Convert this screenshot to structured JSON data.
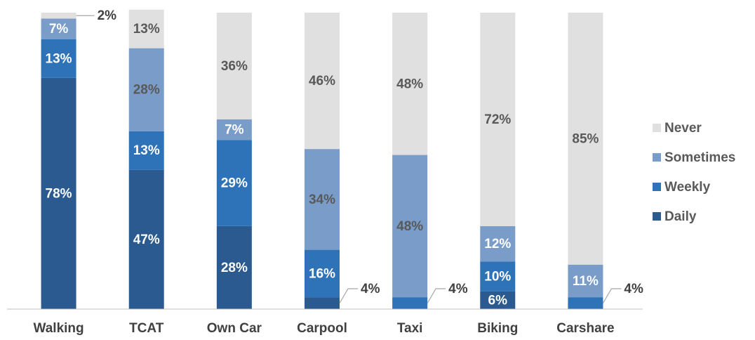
{
  "chart_data": {
    "type": "stacked_bar",
    "categories": [
      "Walking",
      "TCAT",
      "Own Car",
      "Carpool",
      "Taxi",
      "Biking",
      "Carshare"
    ],
    "series": [
      {
        "name": "Daily",
        "color": "#2a5a8f",
        "values": [
          78,
          47,
          28,
          4,
          0,
          6,
          0
        ],
        "value_labels": [
          "78%",
          "47%",
          "28%",
          "4%",
          null,
          "6%",
          null
        ]
      },
      {
        "name": "Weekly",
        "color": "#2e73b8",
        "values": [
          13,
          13,
          29,
          16,
          4,
          10,
          4
        ],
        "value_labels": [
          "13%",
          "13%",
          "29%",
          "16%",
          "4%",
          "10%",
          "4%"
        ]
      },
      {
        "name": "Sometimes",
        "color": "#7a9cc9",
        "values": [
          7,
          28,
          7,
          34,
          48,
          12,
          11
        ],
        "value_labels": [
          "7%",
          "28%",
          "7%",
          "34%",
          "48%",
          "12%",
          "11%"
        ]
      },
      {
        "name": "Never",
        "color": "#e0e0e0",
        "values": [
          2,
          13,
          36,
          46,
          48,
          72,
          85
        ],
        "value_labels": [
          "2%",
          "13%",
          "36%",
          "46%",
          "48%",
          "72%",
          "85%"
        ]
      }
    ],
    "ylim": [
      0,
      100
    ],
    "legend": "right"
  }
}
